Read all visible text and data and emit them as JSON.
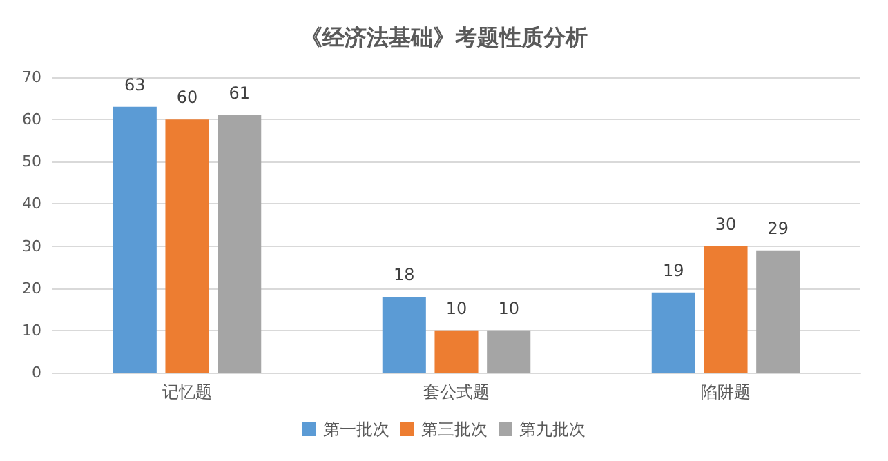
{
  "chart_data": {
    "type": "bar",
    "title": "《经济法基础》考题性质分析",
    "categories": [
      "记忆题",
      "套公式题",
      "陷阱题"
    ],
    "series": [
      {
        "name": "第一批次",
        "color": "#5b9bd5",
        "values": [
          63,
          18,
          19
        ]
      },
      {
        "name": "第三批次",
        "color": "#ed7d31",
        "values": [
          60,
          10,
          30
        ]
      },
      {
        "name": "第九批次",
        "color": "#a5a5a5",
        "values": [
          61,
          10,
          29
        ]
      }
    ],
    "ylim": [
      0,
      70
    ],
    "yticks": [
      0,
      10,
      20,
      30,
      40,
      50,
      60,
      70
    ],
    "grid": "y",
    "legend": "bottom",
    "data_labels": true
  }
}
